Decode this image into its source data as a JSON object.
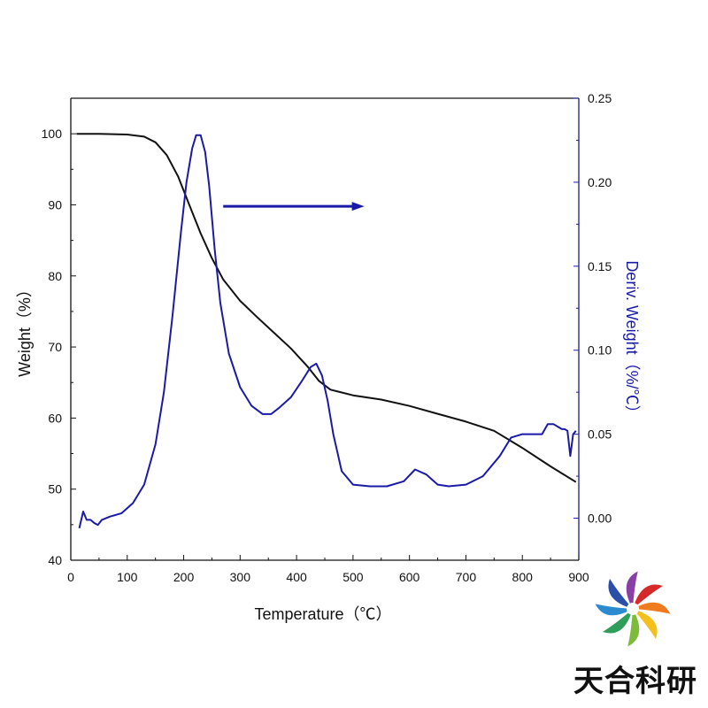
{
  "chart_data": {
    "type": "line",
    "title": "",
    "xlabel": "Temperature（℃）",
    "ylabel_left": "Weight（%）",
    "ylabel_right": "Deriv. Weight（%/℃）",
    "xlim": [
      0,
      900
    ],
    "ylim_left": [
      40,
      105
    ],
    "ylim_right": [
      -0.025,
      0.25
    ],
    "x_ticks": [
      "0",
      "100",
      "200",
      "300",
      "400",
      "500",
      "600",
      "700",
      "800",
      "900"
    ],
    "y_left_ticks": [
      "40",
      "50",
      "60",
      "70",
      "80",
      "90",
      "100"
    ],
    "y_right_ticks": [
      "0.00",
      "0.05",
      "0.10",
      "0.15",
      "0.20",
      "0.25"
    ],
    "grid": false,
    "annotations": [
      {
        "type": "arrow",
        "direction": "right",
        "from": [
          270,
          89.8
        ],
        "to": [
          520,
          89.8
        ],
        "color": "#1a1aa8",
        "meaning": "blue curve uses right axis"
      }
    ],
    "series": [
      {
        "axis": "left",
        "color": "#111111",
        "x": [
          10,
          50,
          100,
          130,
          150,
          170,
          190,
          210,
          230,
          250,
          270,
          300,
          330,
          360,
          390,
          420,
          440,
          460,
          500,
          550,
          600,
          650,
          700,
          750,
          800,
          850,
          895
        ],
        "y": [
          100,
          100,
          99.9,
          99.6,
          98.8,
          97,
          94,
          90,
          86,
          82.5,
          79.5,
          76.5,
          74.2,
          72,
          69.8,
          67.2,
          65.2,
          64,
          63.2,
          62.6,
          61.7,
          60.6,
          59.5,
          58.2,
          55.8,
          53.2,
          51
        ]
      },
      {
        "axis": "right",
        "color": "#1a1aa8",
        "x": [
          15,
          22,
          28,
          35,
          42,
          48,
          55,
          70,
          90,
          110,
          130,
          150,
          165,
          180,
          195,
          205,
          215,
          222,
          230,
          238,
          245,
          255,
          265,
          280,
          300,
          320,
          340,
          355,
          370,
          390,
          410,
          425,
          435,
          445,
          455,
          465,
          480,
          500,
          530,
          560,
          590,
          610,
          630,
          650,
          670,
          700,
          730,
          760,
          780,
          800,
          820,
          835,
          845,
          855,
          865,
          870,
          875,
          880,
          885,
          890,
          895
        ],
        "y": [
          -0.006,
          0.004,
          -0.001,
          -0.001,
          -0.003,
          -0.004,
          -0.001,
          0.001,
          0.003,
          0.009,
          0.02,
          0.044,
          0.075,
          0.12,
          0.17,
          0.2,
          0.22,
          0.228,
          0.228,
          0.218,
          0.198,
          0.16,
          0.128,
          0.098,
          0.078,
          0.067,
          0.062,
          0.062,
          0.066,
          0.072,
          0.082,
          0.09,
          0.092,
          0.085,
          0.07,
          0.05,
          0.028,
          0.02,
          0.019,
          0.019,
          0.022,
          0.029,
          0.026,
          0.02,
          0.019,
          0.02,
          0.025,
          0.037,
          0.048,
          0.05,
          0.05,
          0.05,
          0.056,
          0.056,
          0.054,
          0.053,
          0.053,
          0.052,
          0.037,
          0.05,
          0.052
        ]
      }
    ]
  },
  "watermark": {
    "text": "天合科研",
    "logo": "pinwheel-logo",
    "logo_colors": [
      "#d62a2a",
      "#f07b1e",
      "#f6c01c",
      "#7dbb3a",
      "#2f9e5a",
      "#2a8bd0",
      "#2a4fa8",
      "#8a3fa6"
    ]
  }
}
